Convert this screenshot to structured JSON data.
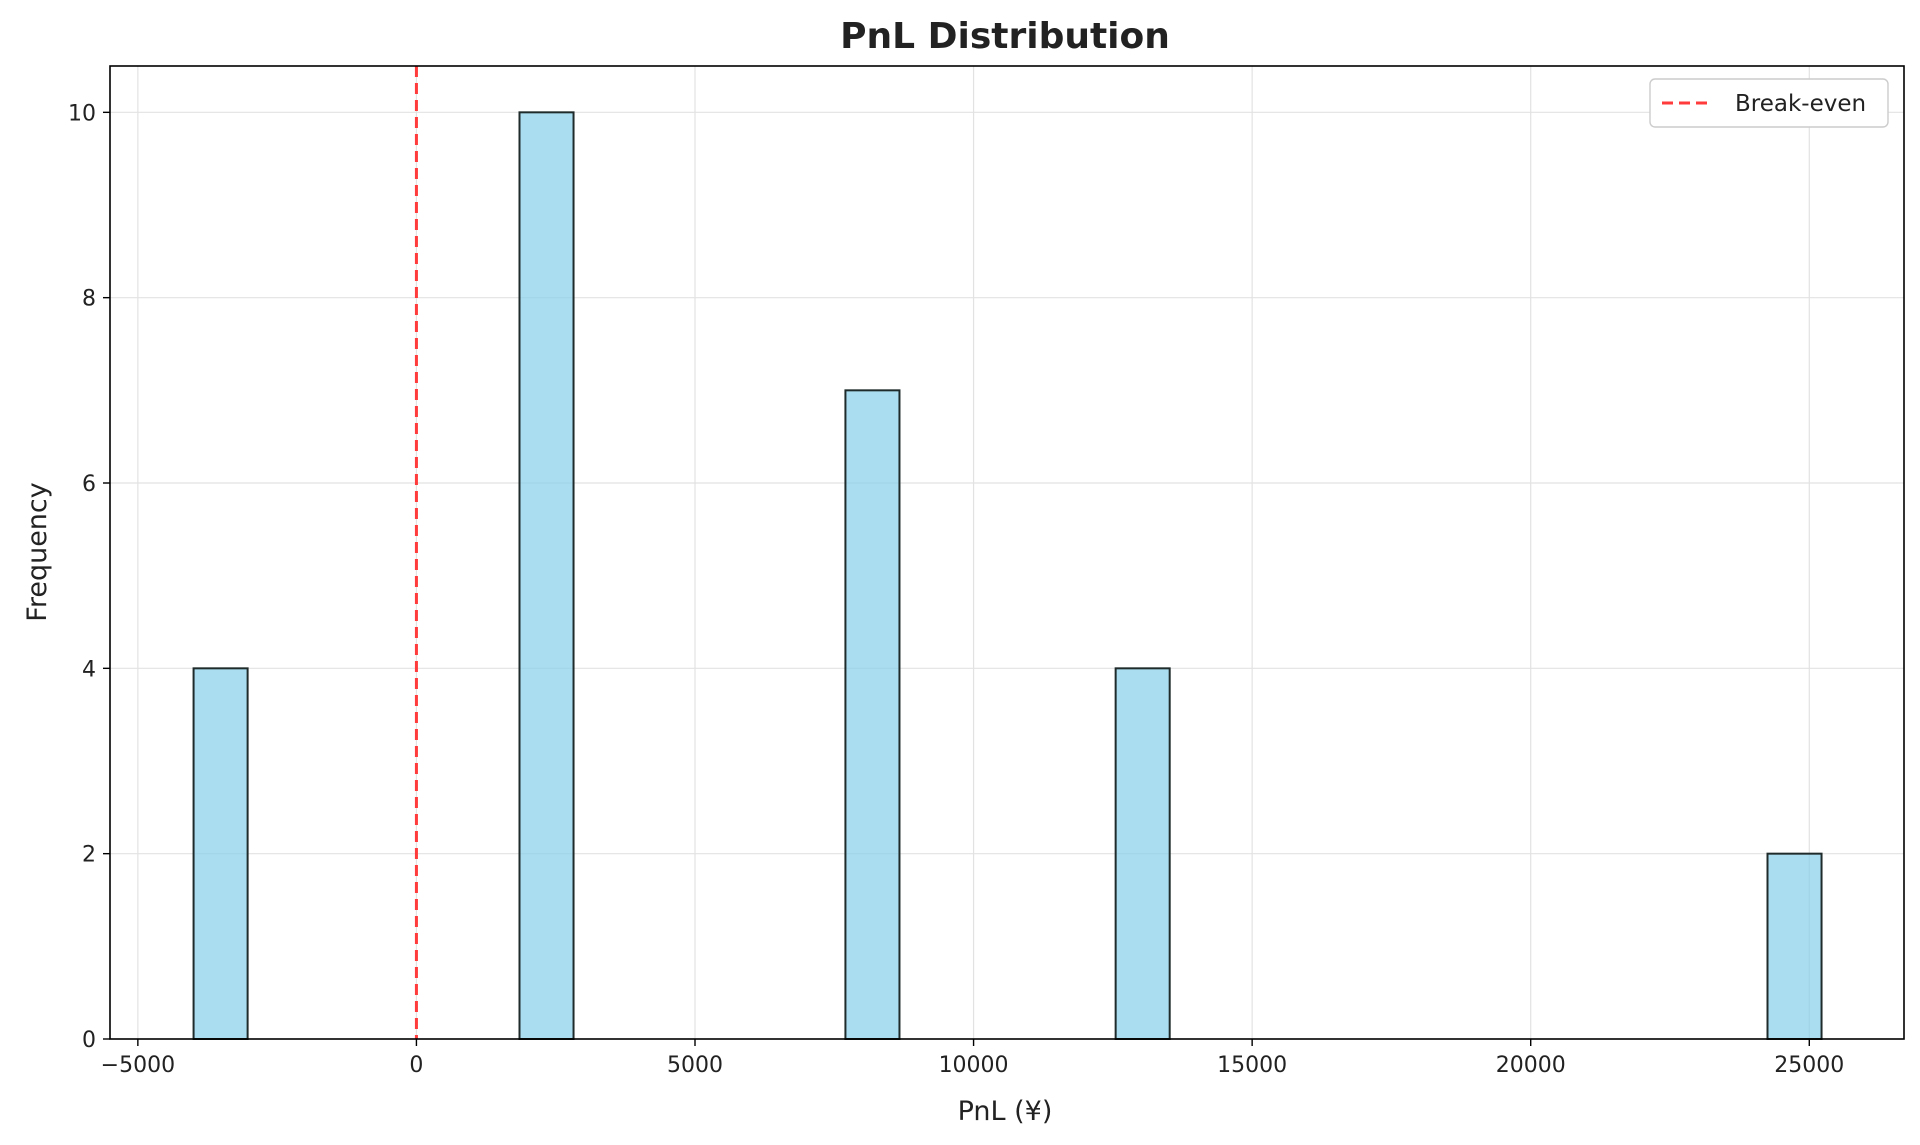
{
  "chart_data": {
    "type": "bar",
    "title": "PnL Distribution",
    "xlabel": "PnL (¥)",
    "ylabel": "Frequency",
    "xlim": [
      -5500,
      26700
    ],
    "ylim": [
      0,
      10.5
    ],
    "xticks": [
      -5000,
      0,
      5000,
      10000,
      15000,
      20000,
      25000
    ],
    "xtick_labels": [
      "−5000",
      "0",
      "5000",
      "10000",
      "15000",
      "20000",
      "25000"
    ],
    "yticks": [
      0,
      2,
      4,
      6,
      8,
      10
    ],
    "ytick_labels": [
      "0",
      "2",
      "4",
      "6",
      "8",
      "10"
    ],
    "grid": true,
    "bar_color": "#87CEEB",
    "bar_edge_color": "#1f2a2a",
    "bins": [
      {
        "x0": -4000,
        "x1": -3030,
        "count": 4
      },
      {
        "x0": 1850,
        "x1": 2820,
        "count": 10
      },
      {
        "x0": 7700,
        "x1": 8670,
        "count": 7
      },
      {
        "x0": 12550,
        "x1": 13520,
        "count": 4
      },
      {
        "x0": 24250,
        "x1": 25220,
        "count": 2
      }
    ],
    "reference_line": {
      "x": 0,
      "label": "Break-even",
      "color": "#ff3b3b",
      "style": "dashed"
    },
    "legend": {
      "position": "top-right",
      "entries": [
        "Break-even"
      ]
    }
  }
}
